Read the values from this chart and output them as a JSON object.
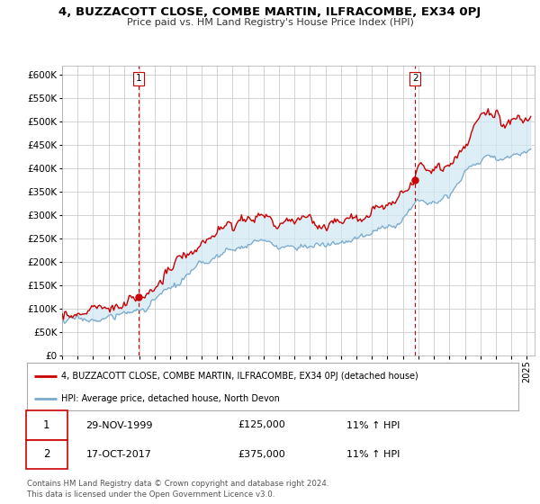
{
  "title": "4, BUZZACOTT CLOSE, COMBE MARTIN, ILFRACOMBE, EX34 0PJ",
  "subtitle": "Price paid vs. HM Land Registry's House Price Index (HPI)",
  "legend_line1": "4, BUZZACOTT CLOSE, COMBE MARTIN, ILFRACOMBE, EX34 0PJ (detached house)",
  "legend_line2": "HPI: Average price, detached house, North Devon",
  "transaction1_date": "29-NOV-1999",
  "transaction1_price": "£125,000",
  "transaction1_hpi": "11% ↑ HPI",
  "transaction2_date": "17-OCT-2017",
  "transaction2_price": "£375,000",
  "transaction2_hpi": "11% ↑ HPI",
  "footer": "Contains HM Land Registry data © Crown copyright and database right 2024.\nThis data is licensed under the Open Government Licence v3.0.",
  "price_color": "#cc0000",
  "hpi_color": "#7aaacc",
  "fill_color": "#d0e8f5",
  "marker_color": "#cc0000",
  "vline_color": "#cc0000",
  "grid_color": "#cccccc",
  "bg_color": "#ffffff",
  "ylim_min": 0,
  "ylim_max": 620000,
  "yticks": [
    0,
    50000,
    100000,
    150000,
    200000,
    250000,
    300000,
    350000,
    400000,
    450000,
    500000,
    550000,
    600000
  ],
  "start_year": 1995.0,
  "end_year": 2025.5,
  "t1_year": 1999.9167,
  "t2_year": 2017.7917,
  "t1_price": 125000,
  "t2_price": 375000
}
